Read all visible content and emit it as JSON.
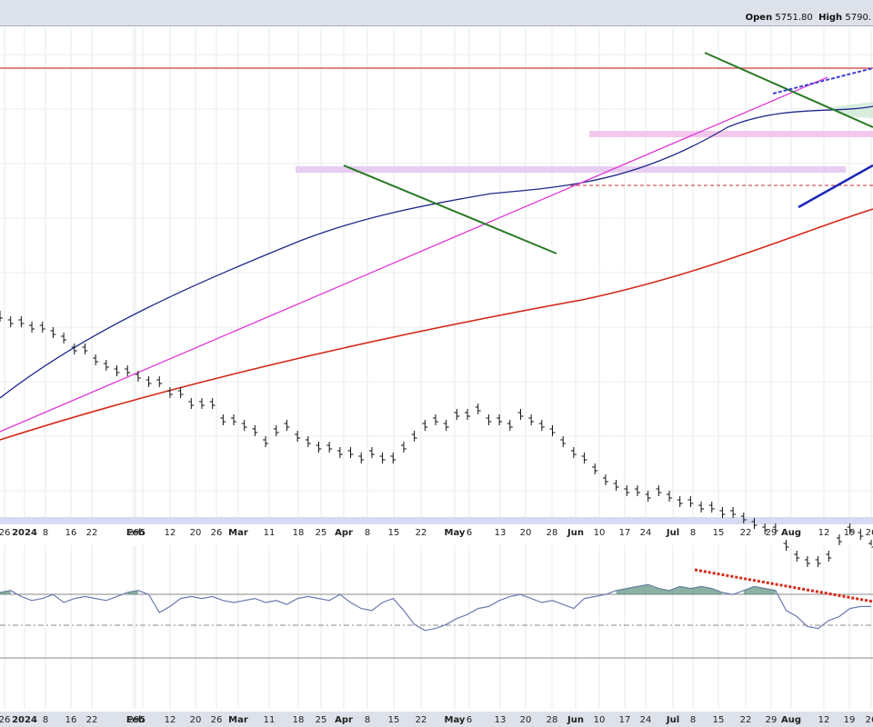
{
  "header": {
    "open_label": "Open",
    "open_value": "5751.80",
    "high_label": "High",
    "high_value": "5790."
  },
  "chart_data": [
    {
      "type": "line",
      "name": "price",
      "x_ticks": [
        "26",
        "2024",
        "8",
        "16",
        "22",
        "29",
        "Feb",
        "5",
        "12",
        "20",
        "26",
        "Mar",
        "11",
        "18",
        "25",
        "Apr",
        "8",
        "15",
        "22",
        "May",
        "6",
        "13",
        "20",
        "28",
        "Jun",
        "10",
        "17",
        "24",
        "Jul",
        "8",
        "15",
        "22",
        "29",
        "Aug",
        "12",
        "19",
        "26"
      ],
      "x_tick_bold": [
        "2024",
        "Feb",
        "Mar",
        "Apr",
        "May",
        "Jun",
        "Jul",
        "Aug"
      ],
      "series": [
        {
          "role": "price_bars",
          "color": "#111111",
          "values": [
            [
              0,
              -3
            ],
            [
              1,
              -4
            ],
            [
              2,
              -4
            ],
            [
              3,
              -5
            ],
            [
              4,
              -5
            ],
            [
              5,
              -6
            ],
            [
              6,
              -7
            ],
            [
              7,
              -9
            ],
            [
              8,
              -9
            ],
            [
              9,
              -11
            ],
            [
              10,
              -12
            ],
            [
              11,
              -13
            ],
            [
              12,
              -13
            ],
            [
              13,
              -14
            ],
            [
              14,
              -15
            ],
            [
              15,
              -15
            ],
            [
              16,
              -17
            ],
            [
              17,
              -17
            ],
            [
              18,
              -19
            ],
            [
              19,
              -19
            ],
            [
              20,
              -19
            ],
            [
              21,
              -22
            ],
            [
              22,
              -22
            ],
            [
              23,
              -23
            ],
            [
              24,
              -24
            ],
            [
              25,
              -26
            ],
            [
              26,
              -24
            ],
            [
              27,
              -23
            ],
            [
              28,
              -25
            ],
            [
              29,
              -26
            ],
            [
              30,
              -27
            ],
            [
              31,
              -27
            ],
            [
              32,
              -28
            ],
            [
              33,
              -28
            ],
            [
              34,
              -29
            ],
            [
              35,
              -28
            ],
            [
              36,
              -29
            ],
            [
              37,
              -29
            ],
            [
              38,
              -27
            ],
            [
              39,
              -25
            ],
            [
              40,
              -23
            ],
            [
              41,
              -22
            ],
            [
              42,
              -23
            ],
            [
              43,
              -21
            ],
            [
              44,
              -21
            ],
            [
              45,
              -20
            ],
            [
              46,
              -22
            ],
            [
              47,
              -22
            ],
            [
              48,
              -23
            ],
            [
              49,
              -21
            ],
            [
              50,
              -22
            ],
            [
              51,
              -23
            ],
            [
              52,
              -24
            ],
            [
              53,
              -26
            ],
            [
              54,
              -28
            ],
            [
              55,
              -29
            ],
            [
              56,
              -31
            ],
            [
              57,
              -33
            ],
            [
              58,
              -34
            ],
            [
              59,
              -35
            ],
            [
              60,
              -35
            ],
            [
              61,
              -36
            ],
            [
              62,
              -35
            ],
            [
              63,
              -36
            ],
            [
              64,
              -37
            ],
            [
              65,
              -37
            ],
            [
              66,
              -38
            ],
            [
              67,
              -38
            ],
            [
              68,
              -39
            ],
            [
              69,
              -39
            ],
            [
              70,
              -40
            ],
            [
              71,
              -41
            ],
            [
              72,
              -42
            ],
            [
              73,
              -42
            ],
            [
              74,
              -45
            ],
            [
              75,
              -47
            ],
            [
              76,
              -48
            ],
            [
              77,
              -48
            ],
            [
              78,
              -47
            ],
            [
              79,
              -44
            ],
            [
              80,
              -42
            ],
            [
              81,
              -43
            ],
            [
              82,
              -45
            ]
          ]
        },
        {
          "role": "sma_50",
          "color": "#1f2a8a"
        },
        {
          "role": "sma_200",
          "color": "#d42a1a"
        }
      ]
    },
    {
      "type": "line",
      "name": "momentum",
      "x_ticks": [
        "26",
        "2024",
        "8",
        "16",
        "22",
        "29",
        "Feb",
        "5",
        "12",
        "20",
        "26",
        "Mar",
        "11",
        "18",
        "25",
        "Apr",
        "8",
        "15",
        "22",
        "May",
        "6",
        "13",
        "20",
        "28",
        "Jun",
        "10",
        "17",
        "24",
        "Jul",
        "8",
        "15",
        "22",
        "29",
        "Aug",
        "12",
        "19",
        "26"
      ],
      "x_tick_bold": [
        "2024",
        "Feb",
        "Mar",
        "Apr",
        "May",
        "Jun",
        "Jul",
        "Aug"
      ],
      "series": [
        {
          "role": "oscillator",
          "color": "#6c7ab0",
          "values": [
            [
              0,
              65
            ],
            [
              1,
              66
            ],
            [
              2,
              63
            ],
            [
              3,
              61
            ],
            [
              4,
              62
            ],
            [
              5,
              64
            ],
            [
              6,
              60
            ],
            [
              7,
              62
            ],
            [
              8,
              63
            ],
            [
              9,
              62
            ],
            [
              10,
              61
            ],
            [
              11,
              63
            ],
            [
              12,
              65
            ],
            [
              13,
              66
            ],
            [
              14,
              64
            ],
            [
              15,
              55
            ],
            [
              16,
              58
            ],
            [
              17,
              62
            ],
            [
              18,
              63
            ],
            [
              19,
              62
            ],
            [
              20,
              63
            ],
            [
              21,
              61
            ],
            [
              22,
              60
            ],
            [
              23,
              61
            ],
            [
              24,
              62
            ],
            [
              25,
              60
            ],
            [
              26,
              61
            ],
            [
              27,
              59
            ],
            [
              28,
              62
            ],
            [
              29,
              63
            ],
            [
              30,
              62
            ],
            [
              31,
              61
            ],
            [
              32,
              64
            ],
            [
              33,
              60
            ],
            [
              34,
              57
            ],
            [
              35,
              56
            ],
            [
              36,
              60
            ],
            [
              37,
              62
            ],
            [
              38,
              56
            ],
            [
              39,
              49
            ],
            [
              40,
              46
            ],
            [
              41,
              47
            ],
            [
              42,
              49
            ],
            [
              43,
              52
            ],
            [
              44,
              54
            ],
            [
              45,
              57
            ],
            [
              46,
              58
            ],
            [
              47,
              61
            ],
            [
              48,
              63
            ],
            [
              49,
              64
            ],
            [
              50,
              62
            ],
            [
              51,
              60
            ],
            [
              52,
              61
            ],
            [
              53,
              59
            ],
            [
              54,
              57
            ],
            [
              55,
              62
            ],
            [
              56,
              63
            ],
            [
              57,
              64
            ],
            [
              58,
              66
            ],
            [
              59,
              67
            ],
            [
              60,
              68
            ],
            [
              61,
              69
            ],
            [
              62,
              67
            ],
            [
              63,
              66
            ],
            [
              64,
              68
            ],
            [
              65,
              67
            ],
            [
              66,
              68
            ],
            [
              67,
              67
            ],
            [
              68,
              65
            ],
            [
              69,
              64
            ],
            [
              70,
              66
            ],
            [
              71,
              68
            ],
            [
              72,
              67
            ],
            [
              73,
              66
            ],
            [
              74,
              56
            ],
            [
              75,
              53
            ],
            [
              76,
              48
            ],
            [
              77,
              47
            ],
            [
              78,
              51
            ],
            [
              79,
              53
            ],
            [
              80,
              57
            ],
            [
              81,
              58
            ],
            [
              82,
              58
            ]
          ]
        }
      ]
    }
  ]
}
